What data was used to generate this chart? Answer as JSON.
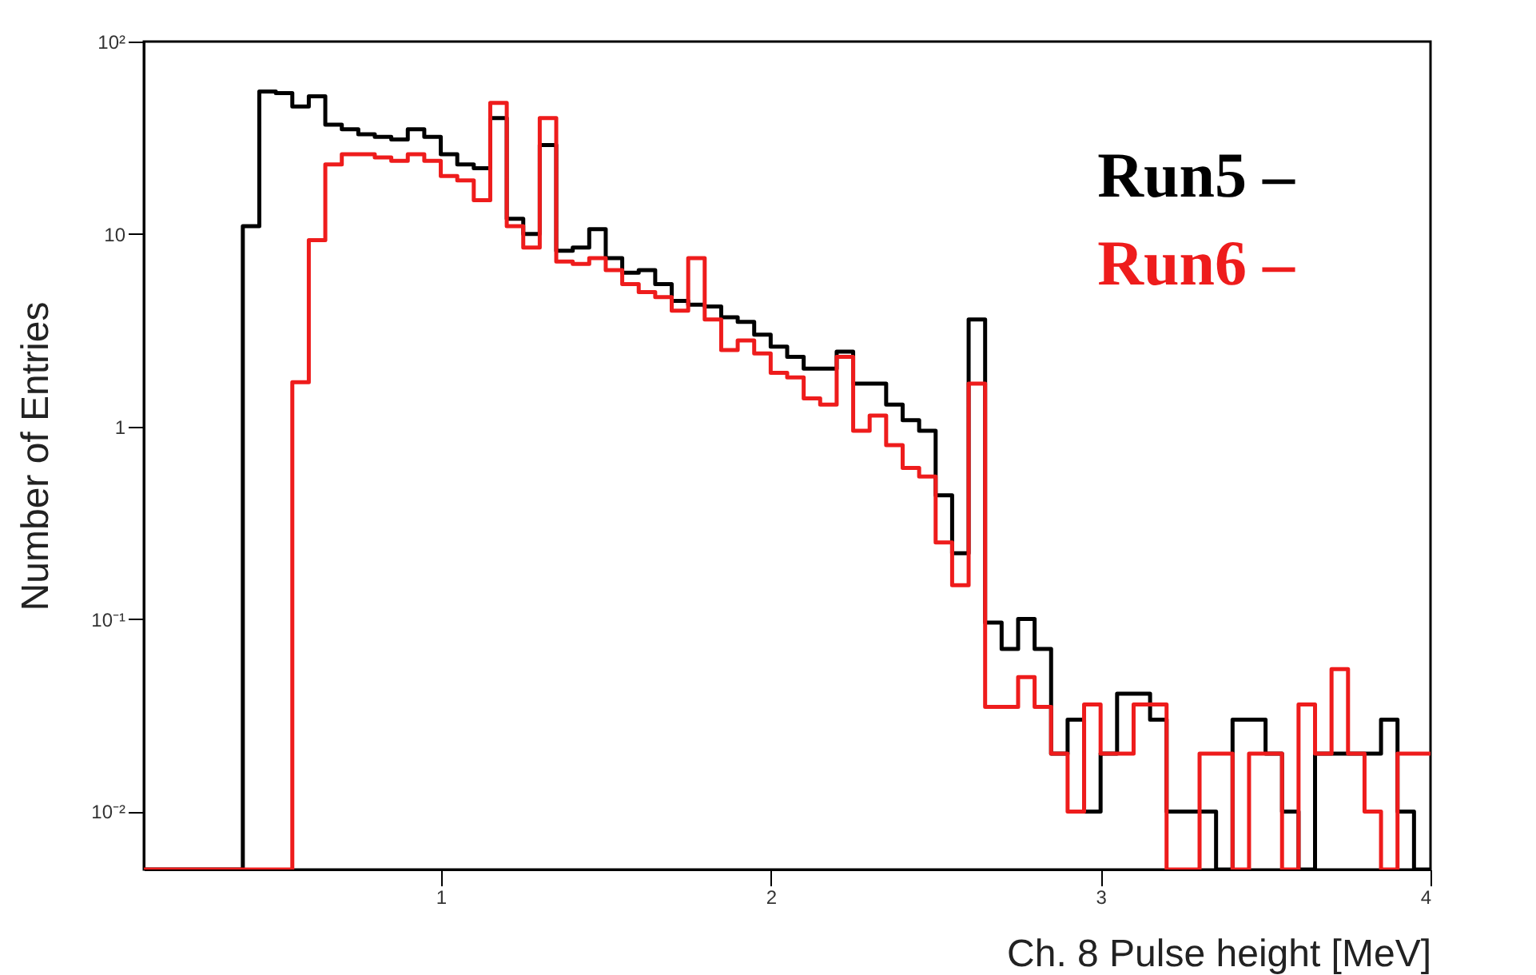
{
  "chart_data": {
    "type": "histogram",
    "xlabel": "Ch. 8 Pulse height [MeV]",
    "ylabel": "Number of Entries",
    "bins": [
      0.1,
      0.15,
      0.2,
      0.25,
      0.3,
      0.35,
      0.4,
      0.45,
      0.5,
      0.55,
      0.6,
      0.65,
      0.7,
      0.75,
      0.8,
      0.85,
      0.9,
      0.95,
      1.0,
      1.05,
      1.1,
      1.15,
      1.2,
      1.25,
      1.3,
      1.35,
      1.4,
      1.45,
      1.5,
      1.55,
      1.6,
      1.65,
      1.7,
      1.75,
      1.8,
      1.85,
      1.9,
      1.95,
      2.0,
      2.05,
      2.1,
      2.15,
      2.2,
      2.25,
      2.3,
      2.35,
      2.4,
      2.45,
      2.5,
      2.55,
      2.6,
      2.65,
      2.7,
      2.75,
      2.8,
      2.85,
      2.9,
      2.95,
      3.0,
      3.05,
      3.1,
      3.15,
      3.2,
      3.25,
      3.3,
      3.35,
      3.4,
      3.45,
      3.5,
      3.55,
      3.6,
      3.65,
      3.7,
      3.75,
      3.8,
      3.85,
      3.9,
      3.95,
      4.0
    ],
    "series": [
      {
        "name": "Run5 –",
        "color": "#000000",
        "values": [
          null,
          null,
          null,
          null,
          null,
          null,
          11,
          55,
          54,
          46,
          52,
          37,
          35,
          33,
          32,
          31,
          35,
          32,
          26,
          23,
          22,
          40,
          12,
          10,
          29,
          8.2,
          8.5,
          10.6,
          7.5,
          6.3,
          6.5,
          5.5,
          4.5,
          4.3,
          4.2,
          3.7,
          3.5,
          3.0,
          2.6,
          2.3,
          2.0,
          2.0,
          2.45,
          1.67,
          1.67,
          1.3,
          1.08,
          0.95,
          0.44,
          0.22,
          3.6,
          0.096,
          0.07,
          0.1,
          0.07,
          0.02,
          0.03,
          0.01,
          0.02,
          0.041,
          0.041,
          0.03,
          0.01,
          0.01,
          0.01,
          null,
          0.03,
          0.03,
          0.02,
          0.01,
          null,
          0.02,
          0.02,
          0.02,
          0.02,
          0.03,
          0.01,
          null
        ]
      },
      {
        "name": "Run6 –",
        "color": "#ee1c1c",
        "values": [
          null,
          null,
          null,
          null,
          null,
          null,
          null,
          null,
          null,
          1.7,
          9.3,
          23,
          26,
          26,
          25,
          24,
          26,
          24,
          20,
          19,
          15,
          48,
          11,
          8.5,
          40,
          7.2,
          7,
          7.5,
          6.5,
          5.5,
          5,
          4.7,
          4.0,
          7.5,
          3.6,
          2.5,
          2.8,
          2.4,
          1.9,
          1.8,
          1.4,
          1.3,
          2.3,
          0.95,
          1.14,
          0.8,
          0.61,
          0.55,
          0.25,
          0.15,
          1.67,
          0.035,
          0.035,
          0.05,
          0.035,
          0.02,
          0.01,
          0.036,
          0.02,
          0.02,
          0.036,
          0.036,
          null,
          null,
          0.02,
          0.02,
          null,
          0.02,
          0.02,
          null,
          0.036,
          0.02,
          0.055,
          0.02,
          0.01,
          null,
          0.02,
          0.02
        ]
      }
    ],
    "xlim": [
      0.1,
      4
    ],
    "xticks": [
      1,
      2,
      3,
      4
    ],
    "ylim": [
      0.005,
      100
    ],
    "yticks": [
      {
        "value": 0.01,
        "label": "10⁻²"
      },
      {
        "value": 0.1,
        "label": "10⁻¹"
      },
      1,
      10,
      {
        "value": 100,
        "label": "10²"
      }
    ],
    "log": true,
    "grid": false,
    "legend": "top right",
    "marker": "none",
    "line_style": "solid"
  }
}
